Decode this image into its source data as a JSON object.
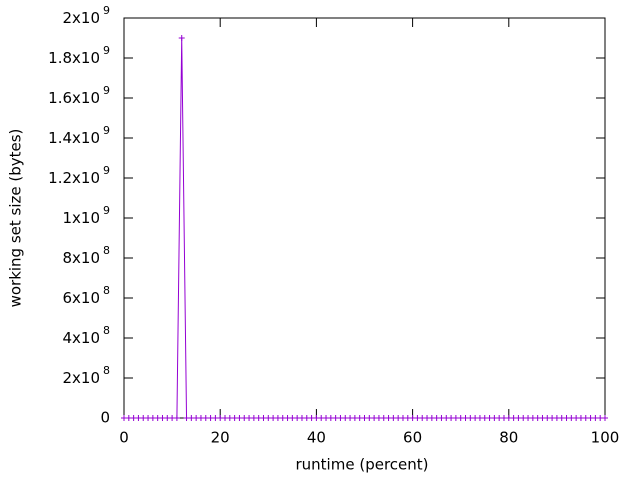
{
  "chart_data": {
    "type": "line",
    "xlabel": "runtime (percent)",
    "ylabel": "working set size (bytes)",
    "x": [
      0,
      1,
      2,
      3,
      4,
      5,
      6,
      7,
      8,
      9,
      10,
      11,
      12,
      13,
      14,
      15,
      16,
      17,
      18,
      19,
      20,
      21,
      22,
      23,
      24,
      25,
      26,
      27,
      28,
      29,
      30,
      31,
      32,
      33,
      34,
      35,
      36,
      37,
      38,
      39,
      40,
      41,
      42,
      43,
      44,
      45,
      46,
      47,
      48,
      49,
      50,
      51,
      52,
      53,
      54,
      55,
      56,
      57,
      58,
      59,
      60,
      61,
      62,
      63,
      64,
      65,
      66,
      67,
      68,
      69,
      70,
      71,
      72,
      73,
      74,
      75,
      76,
      77,
      78,
      79,
      80,
      81,
      82,
      83,
      84,
      85,
      86,
      87,
      88,
      89,
      90,
      91,
      92,
      93,
      94,
      95,
      96,
      97,
      98,
      99,
      100
    ],
    "values": [
      0,
      0,
      0,
      0,
      0,
      0,
      0,
      0,
      0,
      0,
      0,
      0,
      1900000000,
      0,
      0,
      0,
      0,
      0,
      0,
      0,
      0,
      0,
      0,
      0,
      0,
      0,
      0,
      0,
      0,
      0,
      0,
      0,
      0,
      0,
      0,
      0,
      0,
      0,
      0,
      0,
      0,
      0,
      0,
      0,
      0,
      0,
      0,
      0,
      0,
      0,
      0,
      0,
      0,
      0,
      0,
      0,
      0,
      0,
      0,
      0,
      0,
      0,
      0,
      0,
      0,
      0,
      0,
      0,
      0,
      0,
      0,
      0,
      0,
      0,
      0,
      0,
      0,
      0,
      0,
      0,
      0,
      0,
      0,
      0,
      0,
      0,
      0,
      0,
      0,
      0,
      0,
      0,
      0,
      0,
      0,
      0,
      0,
      0,
      0,
      0,
      0
    ],
    "color": "#9400d3",
    "xlim": [
      0,
      100
    ],
    "xticks": [
      0,
      20,
      40,
      60,
      80,
      100
    ],
    "ylim": [
      0,
      2000000000
    ],
    "yticks": [
      0,
      {
        "value": 200000000,
        "label": "2x10",
        "exponent": "8"
      },
      {
        "value": 400000000,
        "label": "4x10",
        "exponent": "8"
      },
      {
        "value": 600000000,
        "label": "6x10",
        "exponent": "8"
      },
      {
        "value": 800000000,
        "label": "8x10",
        "exponent": "8"
      },
      {
        "value": 1000000000,
        "label": "1x10",
        "exponent": "9"
      },
      {
        "value": 1200000000,
        "label": "1.2x10",
        "exponent": "9"
      },
      {
        "value": 1400000000,
        "label": "1.4x10",
        "exponent": "9"
      },
      {
        "value": 1600000000,
        "label": "1.6x10",
        "exponent": "9"
      },
      {
        "value": 1800000000,
        "label": "1.8x10",
        "exponent": "9"
      },
      {
        "value": 2000000000,
        "label": "2x10",
        "exponent": "9"
      }
    ]
  }
}
